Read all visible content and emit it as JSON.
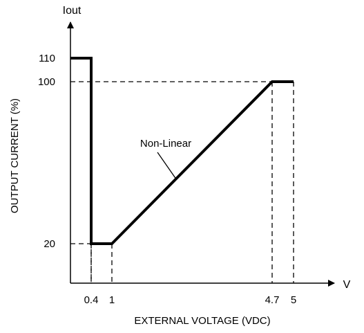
{
  "chart_data": {
    "type": "line",
    "xlabel": "EXTERNAL VOLTAGE (VDC)",
    "ylabel": "OUTPUT CURRENT (%)",
    "x_axis_end_label": "V",
    "y_axis_end_label": "Iout",
    "x_ticks": [
      {
        "value": 0.4,
        "label": "0.4"
      },
      {
        "value": 1,
        "label": "1"
      },
      {
        "value": 4.7,
        "label": "4.7"
      },
      {
        "value": 5,
        "label": "5"
      }
    ],
    "y_ticks": [
      {
        "value": 20,
        "label": "20"
      },
      {
        "value": 100,
        "label": "100"
      },
      {
        "value": 110,
        "label": "110"
      }
    ],
    "series": [
      {
        "x": [
          0,
          0.4,
          0.4,
          1,
          4.7,
          5
        ],
        "y": [
          110,
          110,
          20,
          20,
          100,
          100
        ]
      }
    ],
    "annotations": [
      {
        "text": "Non-Linear",
        "x": 2.48,
        "y": 52
      }
    ],
    "grid": false,
    "guide_lines": "dashed",
    "line_color": "#000000"
  }
}
